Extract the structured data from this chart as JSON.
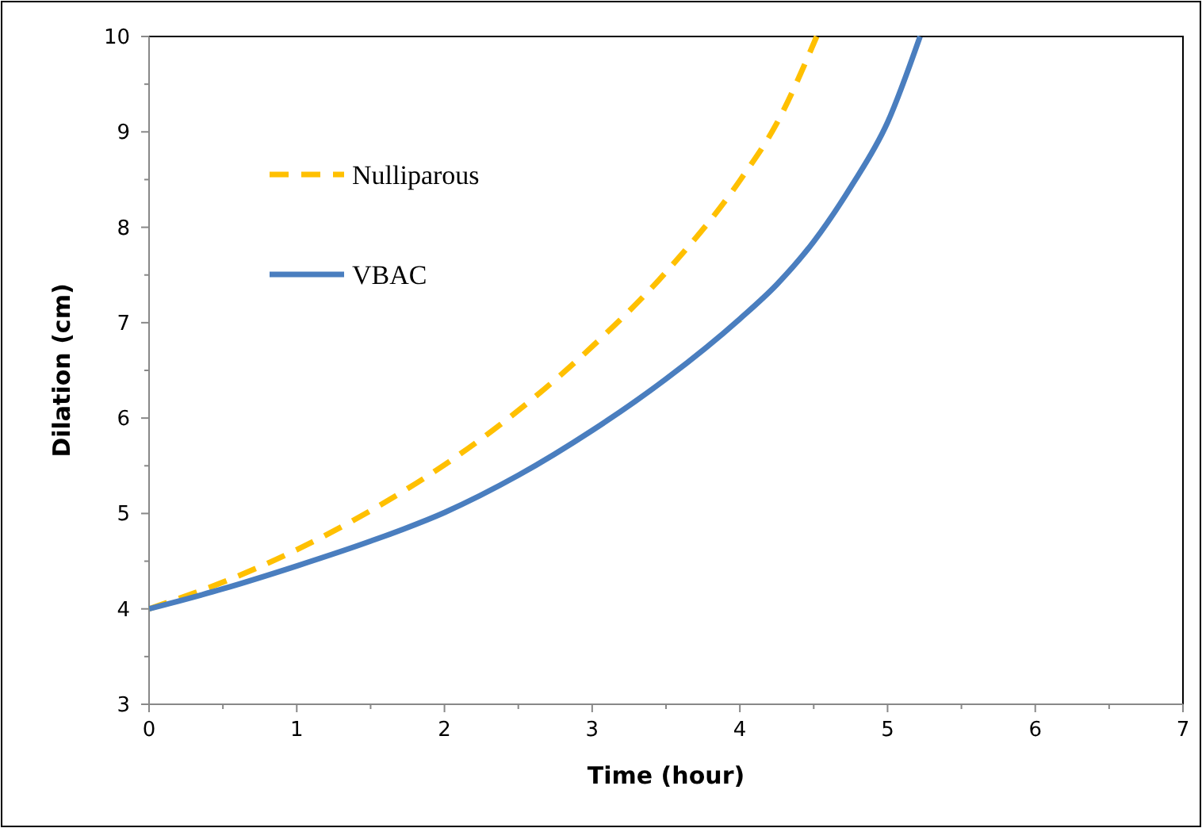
{
  "chart_data": {
    "type": "line",
    "xlabel": "Time (hour)",
    "ylabel": "Dilation (cm)",
    "xlim": [
      0,
      7
    ],
    "ylim": [
      3,
      10
    ],
    "xticks": [
      0,
      1,
      2,
      3,
      4,
      5,
      6,
      7
    ],
    "yticks": [
      3,
      4,
      5,
      6,
      7,
      8,
      9,
      10
    ],
    "grid": false,
    "legend": "top left",
    "series": [
      {
        "name": "Nulliparous",
        "color": "#ffc000",
        "line_style": "dashed",
        "x": [
          0,
          0.5,
          1,
          1.5,
          2,
          2.5,
          3,
          3.5,
          4,
          4.25,
          4.52
        ],
        "values": [
          4,
          4.28,
          4.62,
          5.03,
          5.51,
          6.08,
          6.75,
          7.53,
          8.49,
          9.09,
          10
        ]
      },
      {
        "name": "VBAC",
        "color": "#4a7ebf",
        "line_style": "solid",
        "x": [
          0,
          0.5,
          1,
          1.5,
          2,
          2.5,
          3,
          3.5,
          4,
          4.25,
          4.5,
          4.75,
          5,
          5.22
        ],
        "values": [
          4,
          4.21,
          4.45,
          4.71,
          5.01,
          5.4,
          5.87,
          6.41,
          7.04,
          7.4,
          7.85,
          8.42,
          9.1,
          10
        ]
      }
    ]
  }
}
